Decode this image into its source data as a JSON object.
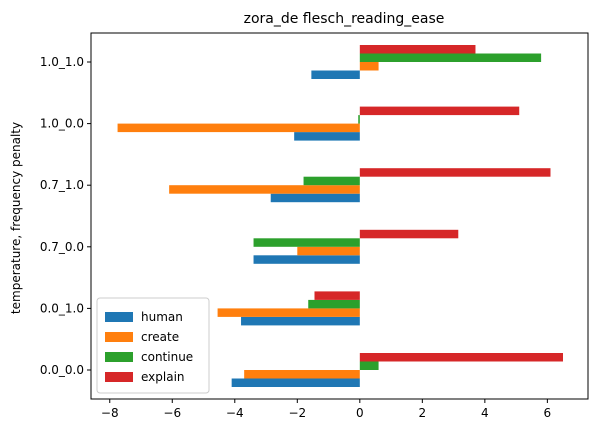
{
  "chart_data": {
    "type": "bar",
    "orientation": "horizontal",
    "title": "zora_de flesch_reading_ease",
    "xlabel": "",
    "ylabel": "temperature, frequency penalty",
    "categories": [
      "0.0_0.0",
      "0.0_1.0",
      "0.7_0.0",
      "0.7_1.0",
      "1.0_0.0",
      "1.0_1.0"
    ],
    "xlim": [
      -8.6,
      7.3
    ],
    "xticks": [
      -8,
      -6,
      -4,
      -2,
      0,
      2,
      4,
      6
    ],
    "xtick_labels": [
      "−8",
      "−6",
      "−4",
      "−2",
      "0",
      "2",
      "4",
      "6"
    ],
    "grid": false,
    "legend_position": "lower-left",
    "series": [
      {
        "name": "human",
        "color": "#1f77b4",
        "values": [
          -4.1,
          -3.8,
          -3.4,
          -2.85,
          -2.1,
          -1.55
        ]
      },
      {
        "name": "create",
        "color": "#ff7f0e",
        "values": [
          -3.7,
          -4.55,
          -2.0,
          -6.1,
          -7.75,
          0.6
        ]
      },
      {
        "name": "continue",
        "color": "#2ca02c",
        "values": [
          0.6,
          -1.65,
          -3.4,
          -1.8,
          -0.05,
          5.8
        ]
      },
      {
        "name": "explain",
        "color": "#d62728",
        "values": [
          6.5,
          -1.45,
          3.15,
          6.1,
          5.1,
          3.7
        ]
      }
    ]
  }
}
